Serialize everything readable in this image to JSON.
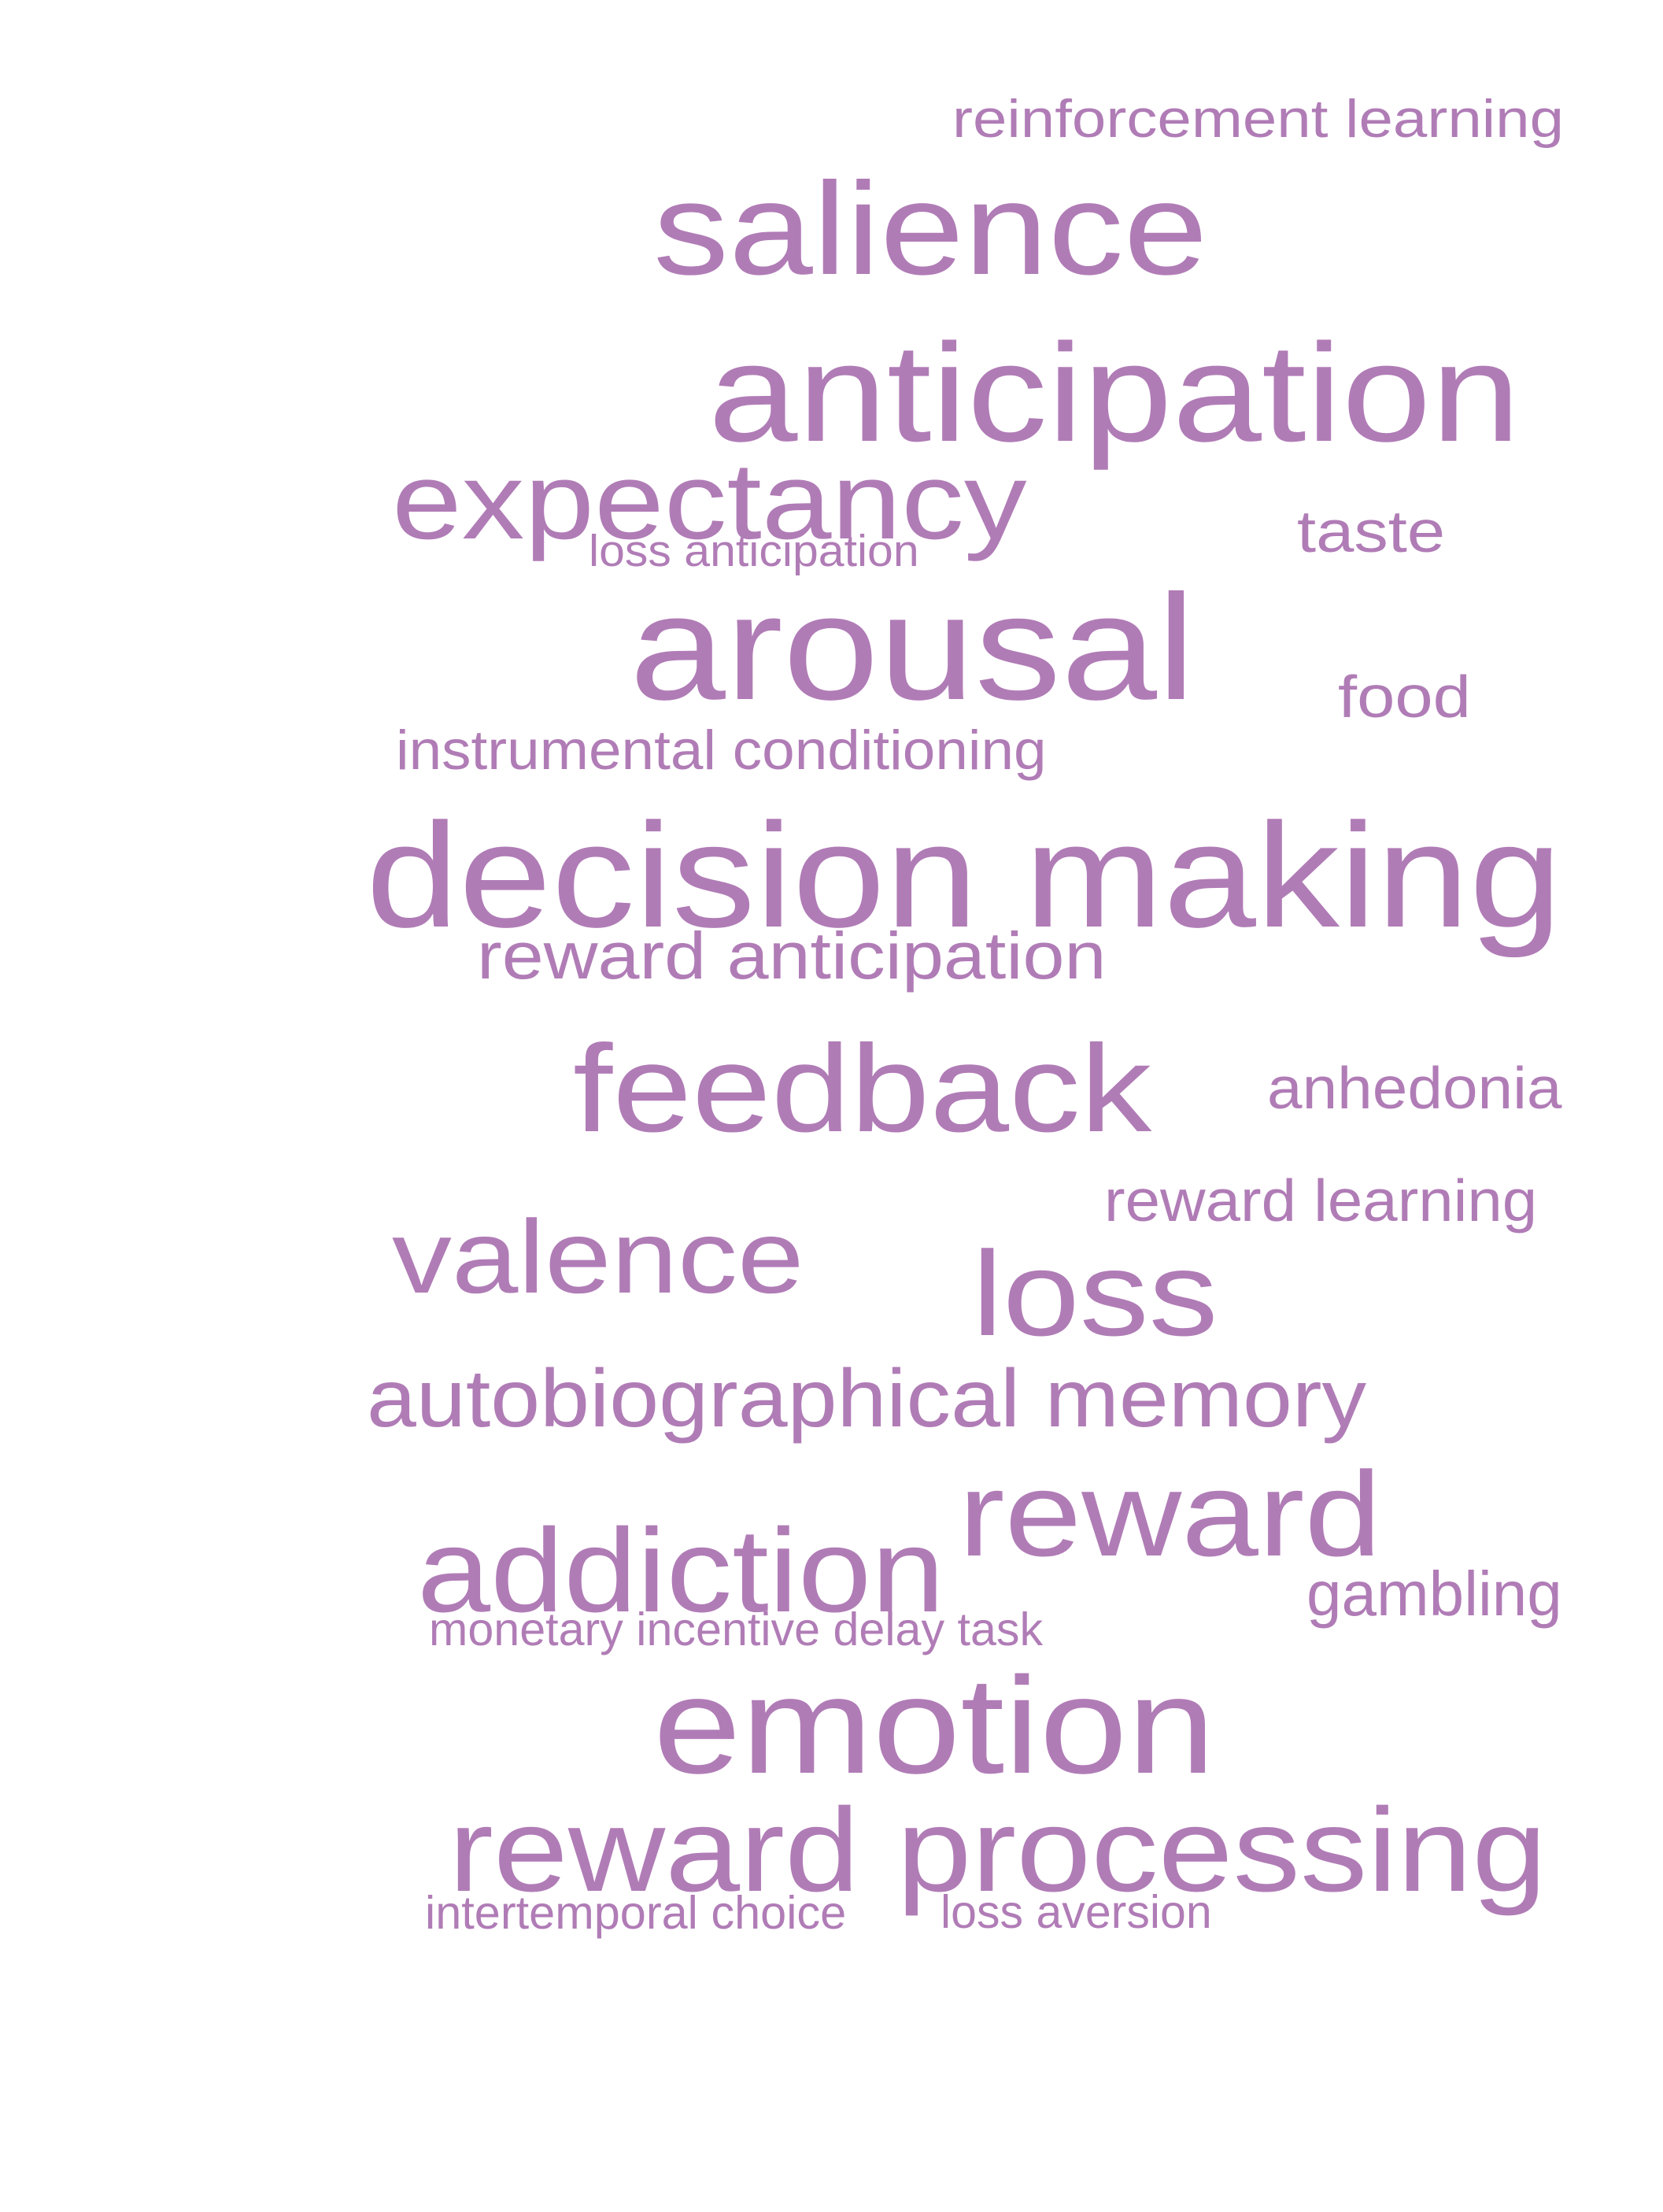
{
  "theme": {
    "word_color": "#b07cb6",
    "background": "#ffffff"
  },
  "words": {
    "reinforcement_learning": "reinforcement learning",
    "salience": "salience",
    "anticipation": "anticipation",
    "expectancy": "expectancy",
    "taste": "taste",
    "loss_anticipation": "loss anticipation",
    "arousal": "arousal",
    "food": "food",
    "instrumental_conditioning": "instrumental conditioning",
    "decision_making": "decision making",
    "reward_anticipation": "reward anticipation",
    "feedback": "feedback",
    "anhedonia": "anhedonia",
    "reward_learning": "reward learning",
    "valence": "valence",
    "loss": "loss",
    "autobiographical_memory": "autobiographical memory",
    "reward": "reward",
    "addiction": "addiction",
    "gambling": "gambling",
    "monetary_incentive_delay_task": "monetary incentive delay task",
    "emotion": "emotion",
    "reward_processing": "reward processing",
    "intertemporal_choice": "intertemporal choice",
    "loss_aversion": "loss aversion"
  }
}
